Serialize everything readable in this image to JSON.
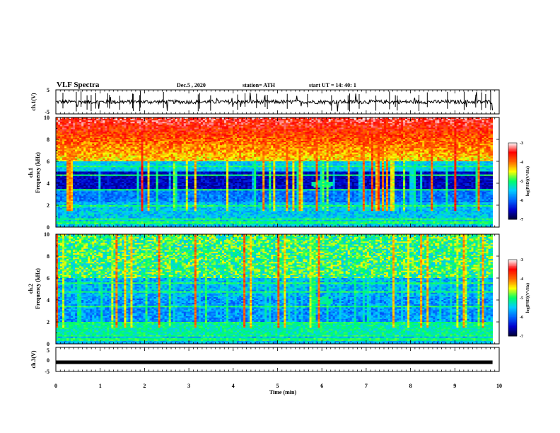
{
  "header": {
    "title": "VLF Spectra",
    "date": "Dec.5 , 2020",
    "station": "station= ATH",
    "start_ut": "start UT = 14: 40: 1"
  },
  "chart_data": [
    {
      "type": "line",
      "name": "ch1-voltage",
      "ylabel": "ch.1(V)",
      "ylim": [
        -5,
        5
      ],
      "yticks": [
        "5",
        "-5"
      ],
      "x_range_min": [
        0,
        9.85
      ],
      "approx_level": 0,
      "noise_range": [
        -0.8,
        0.8
      ]
    },
    {
      "type": "heatmap",
      "name": "ch1-spectrogram",
      "ylabel_lines": [
        "ch.1",
        "Frequency (kHz)"
      ],
      "ylim": [
        0,
        10
      ],
      "yticks": [
        "0",
        "2",
        "4",
        "6",
        "8",
        "10"
      ],
      "colorbar": {
        "label": "log(PSD)(V²/Hz)",
        "ticks": [
          "-3",
          "-4",
          "-5",
          "-6",
          "-7"
        ],
        "range": [
          -7,
          -3
        ],
        "colors": [
          "#000033",
          "#0000cc",
          "#0066ff",
          "#00ccff",
          "#00ff66",
          "#ffff00",
          "#ff6600",
          "#ff0000",
          "#ffffff"
        ]
      },
      "features": {
        "dark_band_khz": [
          3.4,
          5.0
        ],
        "noisy_band_khz": [
          6.0,
          10.0
        ],
        "spot_time_min": 6.0,
        "spot_freq_khz": 3.9
      }
    },
    {
      "type": "heatmap",
      "name": "ch2-spectrogram",
      "ylabel_lines": [
        "ch.2",
        "Frequency (kHz)"
      ],
      "ylim": [
        0,
        10
      ],
      "yticks": [
        "0",
        "2",
        "4",
        "6",
        "8",
        "10"
      ],
      "colorbar": {
        "label": "log(PSD)(V²/Hz)",
        "ticks": [
          "-3",
          "-4",
          "-5",
          "-6",
          "-7"
        ],
        "range": [
          -7,
          -3
        ],
        "colors": [
          "#000033",
          "#0000cc",
          "#0066ff",
          "#00ccff",
          "#00ff66",
          "#ffff00",
          "#ff6600",
          "#ff0000",
          "#ffffff"
        ]
      },
      "features": {
        "spot_time_min": 6.0,
        "spot_freq_khz": 3.9
      }
    },
    {
      "type": "line",
      "name": "ch3-voltage",
      "ylabel": "ch.3(V)",
      "ylim": [
        -5,
        5
      ],
      "yticks": [
        "5",
        "0",
        "-5"
      ],
      "x_range_min": [
        0,
        9.85
      ],
      "approx_level": 0
    }
  ],
  "x_axis": {
    "label": "Time (min)",
    "ticks": [
      "0",
      "1",
      "2",
      "3",
      "4",
      "5",
      "6",
      "7",
      "8",
      "9",
      "10"
    ],
    "range": [
      0,
      10
    ]
  }
}
